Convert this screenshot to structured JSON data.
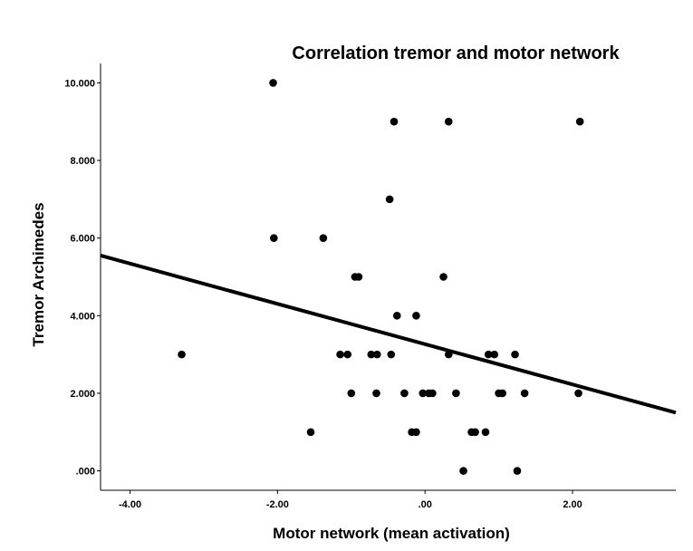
{
  "chart_data": {
    "type": "scatter",
    "title": "Correlation tremor and motor network",
    "xlabel": "Motor network (mean activation)",
    "ylabel": "Tremor Archimedes",
    "xlim": [
      -4.4,
      3.4
    ],
    "ylim": [
      -0.5,
      10.5
    ],
    "x_ticks": [
      -4.0,
      -2.0,
      0.0,
      2.0
    ],
    "x_tick_labels": [
      "-4.00",
      "-2.00",
      ".00",
      "2.00"
    ],
    "y_ticks": [
      0,
      2,
      4,
      6,
      8,
      10
    ],
    "y_tick_labels": [
      ".000",
      "2.000",
      "4.000",
      "6.000",
      "8.000",
      "10.000"
    ],
    "grid": false,
    "points": [
      {
        "x": -2.06,
        "y": 10
      },
      {
        "x": -0.42,
        "y": 9
      },
      {
        "x": 0.32,
        "y": 9
      },
      {
        "x": 2.1,
        "y": 9
      },
      {
        "x": -0.48,
        "y": 7
      },
      {
        "x": -2.05,
        "y": 6
      },
      {
        "x": -1.38,
        "y": 6
      },
      {
        "x": -0.95,
        "y": 5
      },
      {
        "x": -0.9,
        "y": 5
      },
      {
        "x": 0.25,
        "y": 5
      },
      {
        "x": -0.38,
        "y": 4
      },
      {
        "x": -0.12,
        "y": 4
      },
      {
        "x": -3.3,
        "y": 3
      },
      {
        "x": -1.15,
        "y": 3
      },
      {
        "x": -1.05,
        "y": 3
      },
      {
        "x": -0.73,
        "y": 3
      },
      {
        "x": -0.65,
        "y": 3
      },
      {
        "x": -0.46,
        "y": 3
      },
      {
        "x": 0.32,
        "y": 3
      },
      {
        "x": 0.86,
        "y": 3
      },
      {
        "x": 0.94,
        "y": 3
      },
      {
        "x": 1.22,
        "y": 3
      },
      {
        "x": -1.0,
        "y": 2
      },
      {
        "x": -0.66,
        "y": 2
      },
      {
        "x": -0.28,
        "y": 2
      },
      {
        "x": -0.03,
        "y": 2
      },
      {
        "x": 0.05,
        "y": 2
      },
      {
        "x": 0.1,
        "y": 2
      },
      {
        "x": 0.42,
        "y": 2
      },
      {
        "x": 1.0,
        "y": 2
      },
      {
        "x": 1.05,
        "y": 2
      },
      {
        "x": 1.35,
        "y": 2
      },
      {
        "x": 2.08,
        "y": 2
      },
      {
        "x": -1.55,
        "y": 1
      },
      {
        "x": -0.18,
        "y": 1
      },
      {
        "x": -0.12,
        "y": 1
      },
      {
        "x": 0.63,
        "y": 1
      },
      {
        "x": 0.68,
        "y": 1
      },
      {
        "x": 0.82,
        "y": 1
      },
      {
        "x": 0.52,
        "y": 0
      },
      {
        "x": 1.25,
        "y": 0
      }
    ],
    "fit_line": {
      "x_start": -4.4,
      "y_start": 5.55,
      "x_end": 3.4,
      "y_end": 1.5
    }
  }
}
